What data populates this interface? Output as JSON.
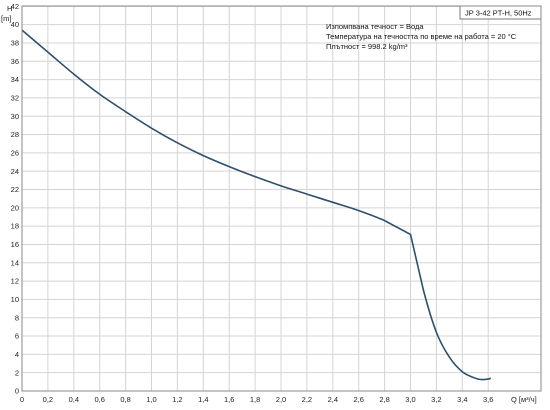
{
  "title": "JP 3-42 PT-H, 50Hz",
  "info_lines": [
    "Изпомпвана течност = Вода",
    "Температура на течността по време на работа = 20 °C",
    "Плътност = 998.2 kg/m³"
  ],
  "chart_data": {
    "type": "line",
    "xlabel": "Q [м³/ч]",
    "ylabel_top": "H",
    "ylabel_unit": "[m]",
    "xlim": [
      0,
      3.7
    ],
    "ylim": [
      0,
      46
    ],
    "x_ticks": [
      "0",
      "0,2",
      "0,4",
      "0,6",
      "0,8",
      "1,0",
      "1,2",
      "1,4",
      "1,6",
      "1,8",
      "2,0",
      "2,2",
      "2,4",
      "2,6",
      "2,8",
      "3,0",
      "3,2",
      "3,4",
      "3,6"
    ],
    "y_ticks": [
      "0",
      "2",
      "4",
      "6",
      "8",
      "10",
      "12",
      "14",
      "16",
      "18",
      "20",
      "22",
      "24",
      "26",
      "28",
      "30",
      "32",
      "34",
      "36",
      "38",
      "40",
      "42",
      "44"
    ],
    "grid": true,
    "series": [
      {
        "color": "#2f4f6f",
        "x": [
          0,
          0.2,
          0.4,
          0.6,
          0.8,
          1.0,
          1.2,
          1.4,
          1.6,
          1.8,
          2.0,
          2.2,
          2.4,
          2.6,
          2.8,
          3.0,
          3.1,
          3.2,
          3.3,
          3.4,
          3.5,
          3.55,
          3.6,
          3.62
        ],
        "y": [
          39.4,
          37.0,
          34.6,
          32.4,
          30.5,
          28.7,
          27.1,
          25.7,
          24.5,
          23.4,
          22.4,
          21.5,
          20.6,
          19.7,
          18.6,
          17.1,
          11.0,
          6.4,
          3.7,
          2.1,
          1.4,
          1.25,
          1.3,
          1.4
        ]
      }
    ]
  }
}
